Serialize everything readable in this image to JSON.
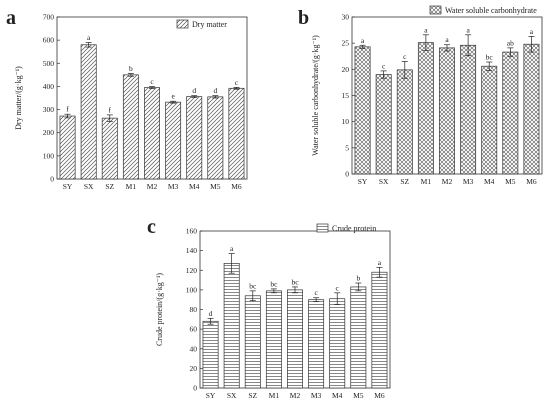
{
  "chart_data": [
    {
      "type": "bar",
      "panel_label": "a",
      "categories": [
        "SY",
        "SX",
        "SZ",
        "M1",
        "M2",
        "M3",
        "M4",
        "M5",
        "M6"
      ],
      "series": [
        {
          "name": "Dry matter",
          "values": [
            272,
            580,
            263,
            450,
            395,
            332,
            356,
            355,
            392
          ],
          "errors": [
            8,
            10,
            14,
            6,
            4,
            4,
            4,
            5,
            4
          ],
          "significance": [
            "f",
            "a",
            "f",
            "b",
            "c",
            "e",
            "d",
            "d",
            "c"
          ]
        }
      ],
      "ylabel": "Dry matter/(g·kg⁻¹)",
      "xlabel": "",
      "ylim": [
        0,
        700
      ],
      "yticks": [
        0,
        100,
        200,
        300,
        400,
        500,
        600,
        700
      ],
      "legend_position": "top-right",
      "pattern": "diagonal-hatch",
      "grid": false
    },
    {
      "type": "bar",
      "panel_label": "b",
      "categories": [
        "SY",
        "SX",
        "SZ",
        "M1",
        "M2",
        "M3",
        "M4",
        "M5",
        "M6"
      ],
      "series": [
        {
          "name": "Water soluble carbonhydrate",
          "values": [
            24.3,
            19.0,
            19.9,
            25.1,
            24.1,
            24.6,
            20.6,
            23.3,
            24.8
          ],
          "errors": [
            0.3,
            0.7,
            1.6,
            1.5,
            0.6,
            2.0,
            0.8,
            0.8,
            1.5
          ],
          "significance": [
            "a",
            "c",
            "c",
            "a",
            "a",
            "a",
            "bc",
            "ab",
            "a"
          ]
        }
      ],
      "ylabel": "Water soluble carbonhydrate/(g·kg⁻¹)",
      "xlabel": "",
      "ylim": [
        0,
        30
      ],
      "yticks": [
        0,
        5,
        10,
        15,
        20,
        25,
        30
      ],
      "legend_position": "top-right",
      "pattern": "cross-hatch",
      "grid": false
    },
    {
      "type": "bar",
      "panel_label": "c",
      "categories": [
        "SY",
        "SX",
        "SZ",
        "M1",
        "M2",
        "M3",
        "M4",
        "M5",
        "M6"
      ],
      "series": [
        {
          "name": "Crude protein",
          "values": [
            68,
            127,
            94,
            99,
            100,
            90,
            91,
            103,
            118
          ],
          "errors": [
            3,
            10,
            5,
            2,
            3,
            2,
            6,
            4,
            5
          ],
          "significance": [
            "d",
            "a",
            "bc",
            "bc",
            "bc",
            "c",
            "c",
            "b",
            "a"
          ]
        }
      ],
      "ylabel": "Crude protein/(g·kg⁻¹)",
      "xlabel": "",
      "ylim": [
        0,
        160
      ],
      "yticks": [
        0,
        20,
        40,
        60,
        80,
        100,
        120,
        140,
        160
      ],
      "legend_position": "top-right",
      "pattern": "horizontal-lines",
      "grid": false
    }
  ]
}
